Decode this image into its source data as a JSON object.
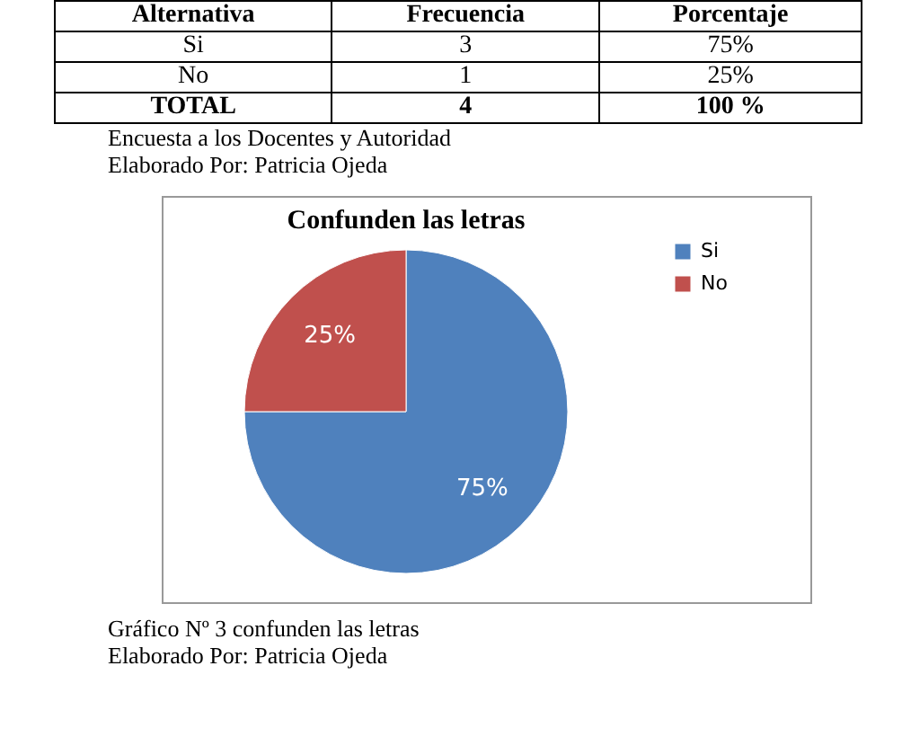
{
  "chart_data": {
    "type": "pie",
    "title": "Confunden las letras",
    "categories": [
      "Si",
      "No"
    ],
    "values": [
      75,
      25
    ],
    "colors": [
      "#4f81bd",
      "#c0504d"
    ],
    "data_labels": true,
    "value_labels": [
      "75%",
      "25%"
    ],
    "legend": "right",
    "annotations": [
      "Alternativa",
      "Frecuencia",
      "Porcentaje",
      "Si",
      "3",
      "75%",
      "No",
      "1",
      "25%",
      "TOTAL",
      "4",
      "100 %",
      "Encuesta a los Docentes y Autoridad",
      "Elaborado Por:  Patricia Ojeda",
      "Gráfico Nº   3    confunden  las letras",
      "Elaborado Por:  Patricia Ojeda"
    ]
  }
}
